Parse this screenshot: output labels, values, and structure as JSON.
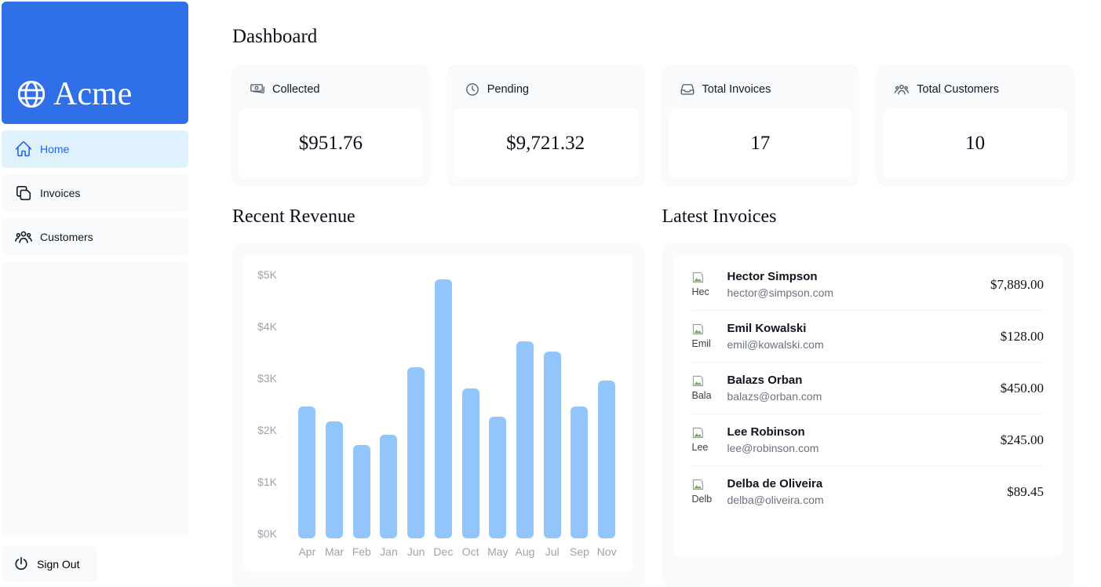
{
  "colors": {
    "brand_blue": "#2f6fe8",
    "active_item_bg": "#dff1fd",
    "active_item_text": "#2563eb",
    "card_bg": "#f9fafb",
    "bar_fill": "#93c5fd",
    "axis_text": "#9ca3af"
  },
  "sidebar": {
    "logo_text": "Acme",
    "logo_icon": "globe-icon",
    "items": [
      {
        "label": "Home",
        "icon": "home-icon",
        "active": true
      },
      {
        "label": "Invoices",
        "icon": "document-duplicate-icon",
        "active": false
      },
      {
        "label": "Customers",
        "icon": "user-group-icon",
        "active": false
      }
    ],
    "sign_out": {
      "label": "Sign Out",
      "icon": "power-icon"
    }
  },
  "page": {
    "title": "Dashboard"
  },
  "cards": [
    {
      "icon": "banknotes-icon",
      "label": "Collected",
      "value": "$951.76"
    },
    {
      "icon": "clock-icon",
      "label": "Pending",
      "value": "$9,721.32"
    },
    {
      "icon": "inbox-icon",
      "label": "Total Invoices",
      "value": "17"
    },
    {
      "icon": "user-group-icon",
      "label": "Total Customers",
      "value": "10"
    }
  ],
  "sections": {
    "revenue_title": "Recent Revenue",
    "invoices_title": "Latest Invoices"
  },
  "chart_data": {
    "type": "bar",
    "title": "Recent Revenue",
    "categories": [
      "Apr",
      "Mar",
      "Feb",
      "Jan",
      "Jun",
      "Dec",
      "Oct",
      "May",
      "Aug",
      "Jul",
      "Sep",
      "Nov"
    ],
    "values": [
      2550,
      2250,
      1800,
      2000,
      3300,
      5000,
      2900,
      2350,
      3800,
      3600,
      2550,
      3050
    ],
    "y_ticks": [
      "$5K",
      "$4K",
      "$3K",
      "$2K",
      "$1K",
      "$0K"
    ],
    "ylim": [
      0,
      5000
    ],
    "grid": false,
    "bar_color": "#93c5fd"
  },
  "latest_invoices": [
    {
      "name": "Hector Simpson",
      "email": "hector@simpson.com",
      "amount": "$7,889.00",
      "avatar_alt": "Hec"
    },
    {
      "name": "Emil Kowalski",
      "email": "emil@kowalski.com",
      "amount": "$128.00",
      "avatar_alt": "Emil"
    },
    {
      "name": "Balazs Orban",
      "email": "balazs@orban.com",
      "amount": "$450.00",
      "avatar_alt": "Bala"
    },
    {
      "name": "Lee Robinson",
      "email": "lee@robinson.com",
      "amount": "$245.00",
      "avatar_alt": "Lee"
    },
    {
      "name": "Delba de Oliveira",
      "email": "delba@oliveira.com",
      "amount": "$89.45",
      "avatar_alt": "Delb"
    }
  ]
}
